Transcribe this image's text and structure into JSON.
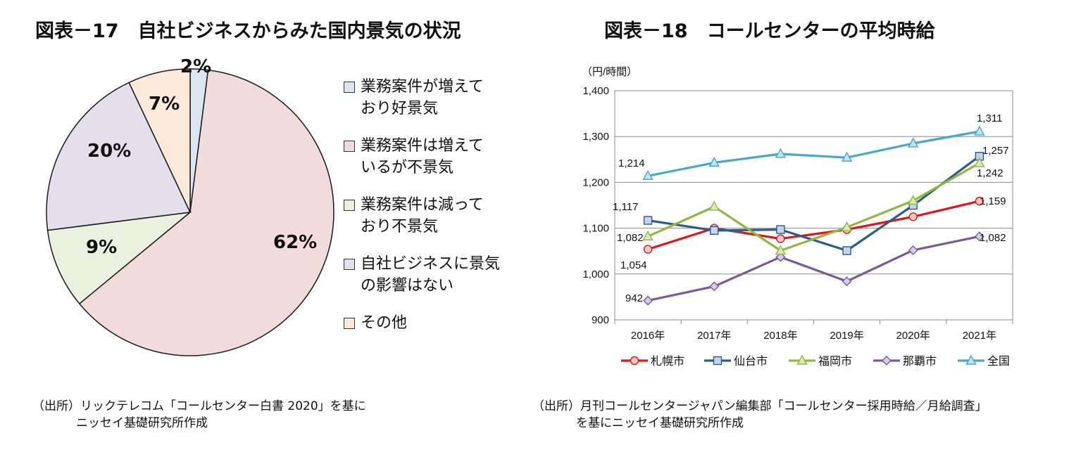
{
  "charts_titles": {
    "left": "図表－17　自社ビジネスからみた国内景気の状況",
    "right": "図表－18　コールセンターの平均時給"
  },
  "sources": {
    "left_line1": "（出所）リックテレコム「コールセンター白書 2020」を基に",
    "left_line2": "ニッセイ基礎研究所作成",
    "right_line1": "（出所）月刊コールセンタージャパン編集部「コールセンター採用時給／月給調査」",
    "right_line2": "を基にニッセイ基礎研究所作成"
  },
  "chart_data": [
    {
      "type": "pie",
      "title": "図表－17　自社ビジネスからみた国内景気の状況",
      "slices": [
        {
          "label": "業務案件が増えており好景気",
          "value": 2,
          "display": "2%",
          "color": "#dce6f2"
        },
        {
          "label": "業務案件は増えているが不景気",
          "value": 62,
          "display": "62%",
          "color": "#f2dcdb"
        },
        {
          "label": "業務案件は減っており不景気",
          "value": 9,
          "display": "9%",
          "color": "#ebf1de"
        },
        {
          "label": "自社ビジネスに景気の影響はない",
          "value": 20,
          "display": "20%",
          "color": "#e4dfec"
        },
        {
          "label": "その他",
          "value": 7,
          "display": "7%",
          "color": "#fde9d9"
        }
      ],
      "legend": [
        {
          "line1": "業務案件が増えて",
          "line2": "おり好景気"
        },
        {
          "line1": "業務案件は増えて",
          "line2": "いるが不景気"
        },
        {
          "line1": "業務案件は減って",
          "line2": "おり不景気"
        },
        {
          "line1": "自社ビジネスに景気",
          "line2": "の影響はない"
        },
        {
          "line1": "その他",
          "line2": ""
        }
      ]
    },
    {
      "type": "line",
      "title": "図表－18　コールセンターの平均時給",
      "ylabel": "（円/時間）",
      "xlabel": "",
      "categories": [
        "2016年",
        "2017年",
        "2018年",
        "2019年",
        "2020年",
        "2021年"
      ],
      "ylim": [
        900,
        1400
      ],
      "yticks": [
        900,
        1000,
        1100,
        1200,
        1300,
        1400
      ],
      "ytick_labels": [
        "900",
        "1,000",
        "1,100",
        "1,200",
        "1,300",
        "1,400"
      ],
      "grid": true,
      "series": [
        {
          "name": "札幌市",
          "values": [
            1054,
            1100,
            1077,
            1097,
            1125,
            1159
          ],
          "color": "#e0161c",
          "marker": "circle"
        },
        {
          "name": "仙台市",
          "values": [
            1117,
            1095,
            1097,
            1051,
            1150,
            1257
          ],
          "color": "#2d5c8a",
          "marker": "square"
        },
        {
          "name": "福岡市",
          "values": [
            1082,
            1147,
            1051,
            1102,
            1160,
            1242
          ],
          "color": "#93b640",
          "marker": "triangle"
        },
        {
          "name": "那覇市",
          "values": [
            942,
            973,
            1037,
            984,
            1052,
            1082
          ],
          "color": "#7a5a9a",
          "marker": "diamond"
        },
        {
          "name": "全国",
          "values": [
            1214,
            1243,
            1262,
            1254,
            1285,
            1311
          ],
          "color": "#4aa8c4",
          "marker": "triangle"
        }
      ],
      "annotations": [
        {
          "text": "1,214"
        },
        {
          "text": "1,117"
        },
        {
          "text": "1,082"
        },
        {
          "text": "1,054"
        },
        {
          "text": "942"
        },
        {
          "text": "1,311"
        },
        {
          "text": "1,257"
        },
        {
          "text": "1,242"
        },
        {
          "text": "1,159"
        },
        {
          "text": "1,082"
        }
      ]
    }
  ]
}
